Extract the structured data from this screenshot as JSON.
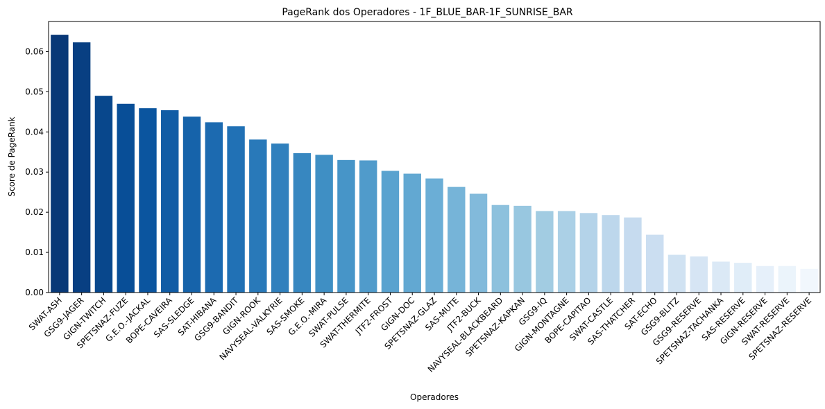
{
  "chart_data": {
    "type": "bar",
    "title": "PageRank dos Operadores - 1F_BLUE_BAR-1F_SUNRISE_BAR",
    "xlabel": "Operadores",
    "ylabel": "Score de PageRank",
    "ylim": [
      0,
      0.0675
    ],
    "yticks": [
      "0.00",
      "0.01",
      "0.02",
      "0.03",
      "0.04",
      "0.05",
      "0.06"
    ],
    "grid": false,
    "palette": "Blues (dark to light)",
    "categories": [
      "SWAT-ASH",
      "GSG9-JAGER",
      "GIGN-TWITCH",
      "SPETSNAZ-FUZE",
      "G.E.O.-JACKAL",
      "BOPE-CAVEIRA",
      "SAS-SLEDGE",
      "SAT-HIBANA",
      "GSG9-BANDIT",
      "GIGN-ROOK",
      "NAVYSEAL-VALKYRIE",
      "SAS-SMOKE",
      "G.E.O.-MIRA",
      "SWAT-PULSE",
      "SWAT-THERMITE",
      "JTF2-FROST",
      "GIGN-DOC",
      "SPETSNAZ-GLAZ",
      "SAS-MUTE",
      "JTF2-BUCK",
      "NAVYSEAL-BLACKBEARD",
      "SPETSNAZ-KAPKAN",
      "GSG9-IQ",
      "GIGN-MONTAGNE",
      "BOPE-CAPITAO",
      "SWAT-CASTLE",
      "SAS-THATCHER",
      "SAT-ECHO",
      "GSG9-BLITZ",
      "GSG9-RESERVE",
      "SPETSNAZ-TACHANKA",
      "SAS-RESERVE",
      "GIGN-RESERVE",
      "SWAT-RESERVE",
      "SPETSNAZ-RESERVE"
    ],
    "values": [
      0.0642,
      0.0623,
      0.049,
      0.047,
      0.0459,
      0.0454,
      0.0438,
      0.0424,
      0.0414,
      0.0381,
      0.0371,
      0.0347,
      0.0343,
      0.033,
      0.0329,
      0.0303,
      0.0296,
      0.0284,
      0.0263,
      0.0246,
      0.0218,
      0.0216,
      0.0203,
      0.0203,
      0.0198,
      0.0193,
      0.0187,
      0.0144,
      0.0094,
      0.009,
      0.0077,
      0.0074,
      0.0066,
      0.0066,
      0.0059
    ]
  }
}
